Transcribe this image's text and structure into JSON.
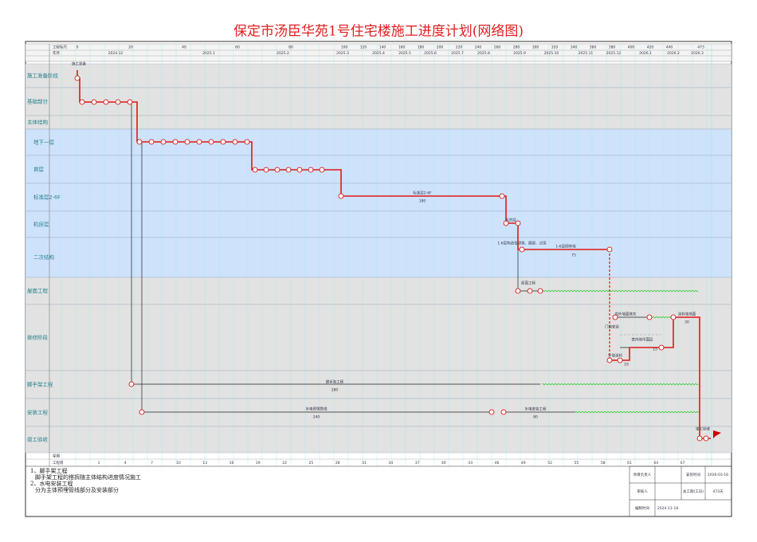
{
  "header": {
    "title": "保定市汤臣华苑1号住宅楼施工进度计划(网络图)"
  },
  "scale": {
    "row_label": "工程标尺",
    "month_label": "年月",
    "marks": [
      "0",
      "20",
      "40",
      "60",
      "80",
      "100",
      "120",
      "140",
      "160",
      "180",
      "200",
      "220",
      "240",
      "260",
      "280",
      "300",
      "320",
      "340",
      "360",
      "380",
      "400",
      "420",
      "440",
      "473"
    ],
    "months": [
      "2024.12",
      "2025.1",
      "2025.2",
      "2025.3",
      "2025.4",
      "2025.5",
      "2025.6",
      "2025.7",
      "2025.8",
      "2025.9",
      "2025.10",
      "2025.11",
      "2025.12",
      "2026.1",
      "2026.2",
      "2026.3"
    ]
  },
  "rows": [
    "施工准备阶段",
    "基础部分",
    "主体结构",
    "地下一层",
    "首层",
    "标准层2-6F",
    "机房层",
    "二次结构",
    "屋面工程",
    "装修阶段",
    "脚手架工程",
    "安装工程",
    "竣工验收"
  ],
  "tasks": [
    {
      "label": "施工准备",
      "days": 2
    },
    {
      "label": "标准层2-6F",
      "days": 180
    },
    {
      "label": "机房层",
      "days": 8
    },
    {
      "label": "1-6层构造柱浇筑、圈梁、过梁",
      "days": 8
    },
    {
      "label": "1-6层砌体墙",
      "days": 75
    },
    {
      "label": "屋面工程",
      "days": 4
    },
    {
      "label": "内外墙面抹灰",
      "days": 30
    },
    {
      "label": "门窗安装",
      "days": 15
    },
    {
      "label": "外墙涂料",
      "days": 19
    },
    {
      "label": "室内地坪面层",
      "days": 15
    },
    {
      "label": "涂料墙地面",
      "days": 30
    },
    {
      "label": "脚手架工程",
      "days": 280
    },
    {
      "label": "水电预埋管线",
      "days": 240
    },
    {
      "label": "水电安装工程",
      "days": 80
    },
    {
      "label": "竣工验收",
      "days": 3
    }
  ],
  "footer": {
    "week_label": "星期",
    "week_row_label": "工程周",
    "weeks": [
      "1",
      "4",
      "7",
      "10",
      "13",
      "16",
      "19",
      "22",
      "25",
      "28",
      "31",
      "34",
      "37",
      "40",
      "43",
      "46",
      "49",
      "52",
      "55",
      "58",
      "61",
      "64",
      "67"
    ]
  },
  "notes": [
    "1、脚手架工程",
    "脚手架工程的搭拆随主体结构进度情况施工",
    "2、水电安装工程",
    "分为主体预埋管线部分及安装部分"
  ],
  "signoff": {
    "cells": [
      "项目负责人",
      "",
      "安装时间",
      "2026-03-16",
      "审核人",
      "",
      "总工期(工日)",
      "473天",
      "编制时间",
      "2024-11-18"
    ]
  }
}
